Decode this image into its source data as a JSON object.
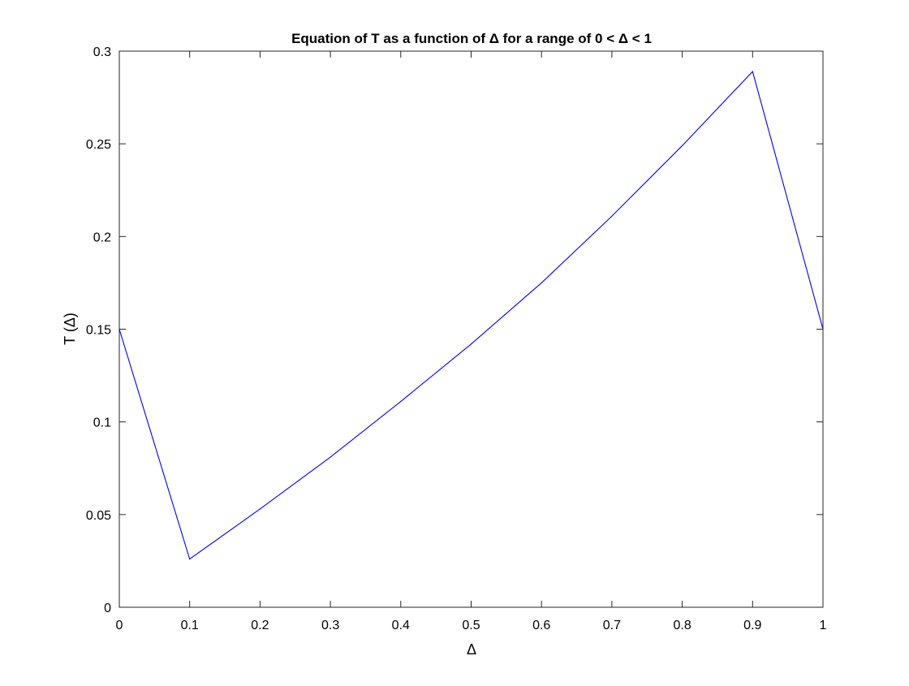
{
  "chart_data": {
    "type": "line",
    "title": "Equation of T as a function of Δ for a range of 0 < Δ < 1",
    "xlabel": "Δ",
    "ylabel": "T (Δ)",
    "xlim": [
      0,
      1
    ],
    "ylim": [
      0,
      0.3
    ],
    "xticks": [
      "0",
      "0.1",
      "0.2",
      "0.3",
      "0.4",
      "0.5",
      "0.6",
      "0.7",
      "0.8",
      "0.9",
      "1"
    ],
    "yticks": [
      "0",
      "0.05",
      "0.1",
      "0.15",
      "0.2",
      "0.25",
      "0.3"
    ],
    "grid": false,
    "series": [
      {
        "color": "#0000ff",
        "x": [
          0,
          0.1,
          0.2,
          0.3,
          0.4,
          0.5,
          0.6,
          0.7,
          0.8,
          0.9,
          1.0
        ],
        "y": [
          0.15,
          0.026,
          0.053,
          0.081,
          0.111,
          0.142,
          0.175,
          0.211,
          0.249,
          0.289,
          0.15
        ]
      }
    ]
  }
}
